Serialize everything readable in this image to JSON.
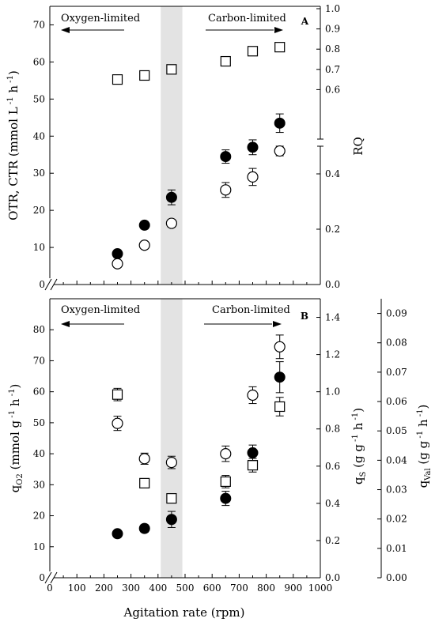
{
  "figure": {
    "xlabel": "Agitation rate (rpm)",
    "x_ticks": [
      0,
      100,
      200,
      300,
      400,
      500,
      600,
      700,
      800,
      900,
      1000
    ]
  },
  "chart_data": [
    {
      "panel": "A",
      "type": "scatter",
      "xlim": [
        0,
        1000
      ],
      "axes": {
        "left": {
          "label": "OTR, CTR (mmol L h)",
          "label_exponents": [
            "-1",
            "-1"
          ],
          "lim": [
            0,
            75
          ],
          "ticks": [
            0,
            10,
            20,
            30,
            40,
            50,
            60,
            70
          ]
        },
        "right": {
          "label": "RQ",
          "lim": [
            0,
            1.0
          ],
          "ticks": [
            "0.0",
            "0.2",
            "0.4",
            "0.6",
            "0.7",
            "0.8",
            "0.9",
            "1.0"
          ],
          "broken": true
        }
      },
      "shaded_region": [
        410,
        490
      ],
      "annotations": {
        "left": "Oxygen-limited",
        "right": "Carbon-limited",
        "panel_label": "A"
      },
      "series": [
        {
          "marker": "filled-circle",
          "axis": "left",
          "x": [
            250,
            350,
            450,
            650,
            750,
            850
          ],
          "y": [
            8.3,
            16.0,
            23.5,
            34.5,
            37.0,
            43.5
          ],
          "err": [
            1.0,
            1.0,
            2.0,
            1.8,
            2.0,
            2.5
          ]
        },
        {
          "marker": "open-circle",
          "axis": "left",
          "x": [
            250,
            350,
            450,
            650,
            750,
            850
          ],
          "y": [
            5.6,
            10.6,
            16.5,
            25.5,
            29.0,
            36.0
          ],
          "err": [
            0.5,
            0.5,
            1.0,
            2.0,
            2.3,
            1.3
          ]
        },
        {
          "marker": "open-square",
          "axis": "right",
          "x": [
            250,
            350,
            450,
            650,
            750,
            850
          ],
          "y": [
            0.65,
            0.67,
            0.7,
            0.74,
            0.79,
            0.81
          ],
          "err": [
            0,
            0,
            0,
            0,
            0,
            0
          ]
        }
      ]
    },
    {
      "panel": "B",
      "type": "scatter",
      "xlim": [
        0,
        1000
      ],
      "axes": {
        "left": {
          "label": "q (mmol g h)",
          "label_sub": "O2",
          "label_exponents": [
            "-1",
            "-1"
          ],
          "lim": [
            0,
            90
          ],
          "ticks": [
            0,
            10,
            20,
            30,
            40,
            50,
            60,
            70,
            80
          ]
        },
        "right1": {
          "label": "q (g g h)",
          "label_sub": "S",
          "label_exponents": [
            "-1",
            "-1"
          ],
          "lim": [
            0,
            1.5
          ],
          "ticks": [
            "0.0",
            "0.2",
            "0.4",
            "0.6",
            "0.8",
            "1.0",
            "1.2",
            "1.4"
          ]
        },
        "right2": {
          "label": "q (g g h)",
          "label_sub": "Val",
          "label_exponents": [
            "-1",
            "-1"
          ],
          "lim": [
            0,
            0.095
          ],
          "ticks": [
            "0.00",
            "0.01",
            "0.02",
            "0.03",
            "0.04",
            "0.05",
            "0.06",
            "0.07",
            "0.08",
            "0.09"
          ]
        }
      },
      "shaded_region": [
        410,
        490
      ],
      "annotations": {
        "left": "Oxygen-limited",
        "right": "Carbon-limited",
        "panel_label": "B"
      },
      "series": [
        {
          "marker": "open-circle",
          "axis": "left",
          "x": [
            250,
            350,
            450,
            650,
            750,
            850
          ],
          "y": [
            49.8,
            38.4,
            37.2,
            40.0,
            58.9,
            74.5
          ],
          "err": [
            2.3,
            1.8,
            2.0,
            2.5,
            2.7,
            3.8
          ]
        },
        {
          "marker": "open-square",
          "axis": "left",
          "x": [
            250,
            350,
            450,
            650,
            750,
            850
          ],
          "y": [
            59.1,
            30.5,
            25.6,
            31.0,
            36.3,
            55.2
          ],
          "err": [
            2.0,
            1.5,
            0.4,
            2.0,
            2.2,
            3.0
          ]
        },
        {
          "marker": "filled-circle",
          "axis": "left",
          "x": [
            250,
            350,
            450,
            650,
            750,
            850
          ],
          "y": [
            14.2,
            15.9,
            18.8,
            25.6,
            40.3,
            64.7
          ],
          "err": [
            1.0,
            1.2,
            2.6,
            2.3,
            2.5,
            5.0
          ]
        }
      ]
    }
  ]
}
